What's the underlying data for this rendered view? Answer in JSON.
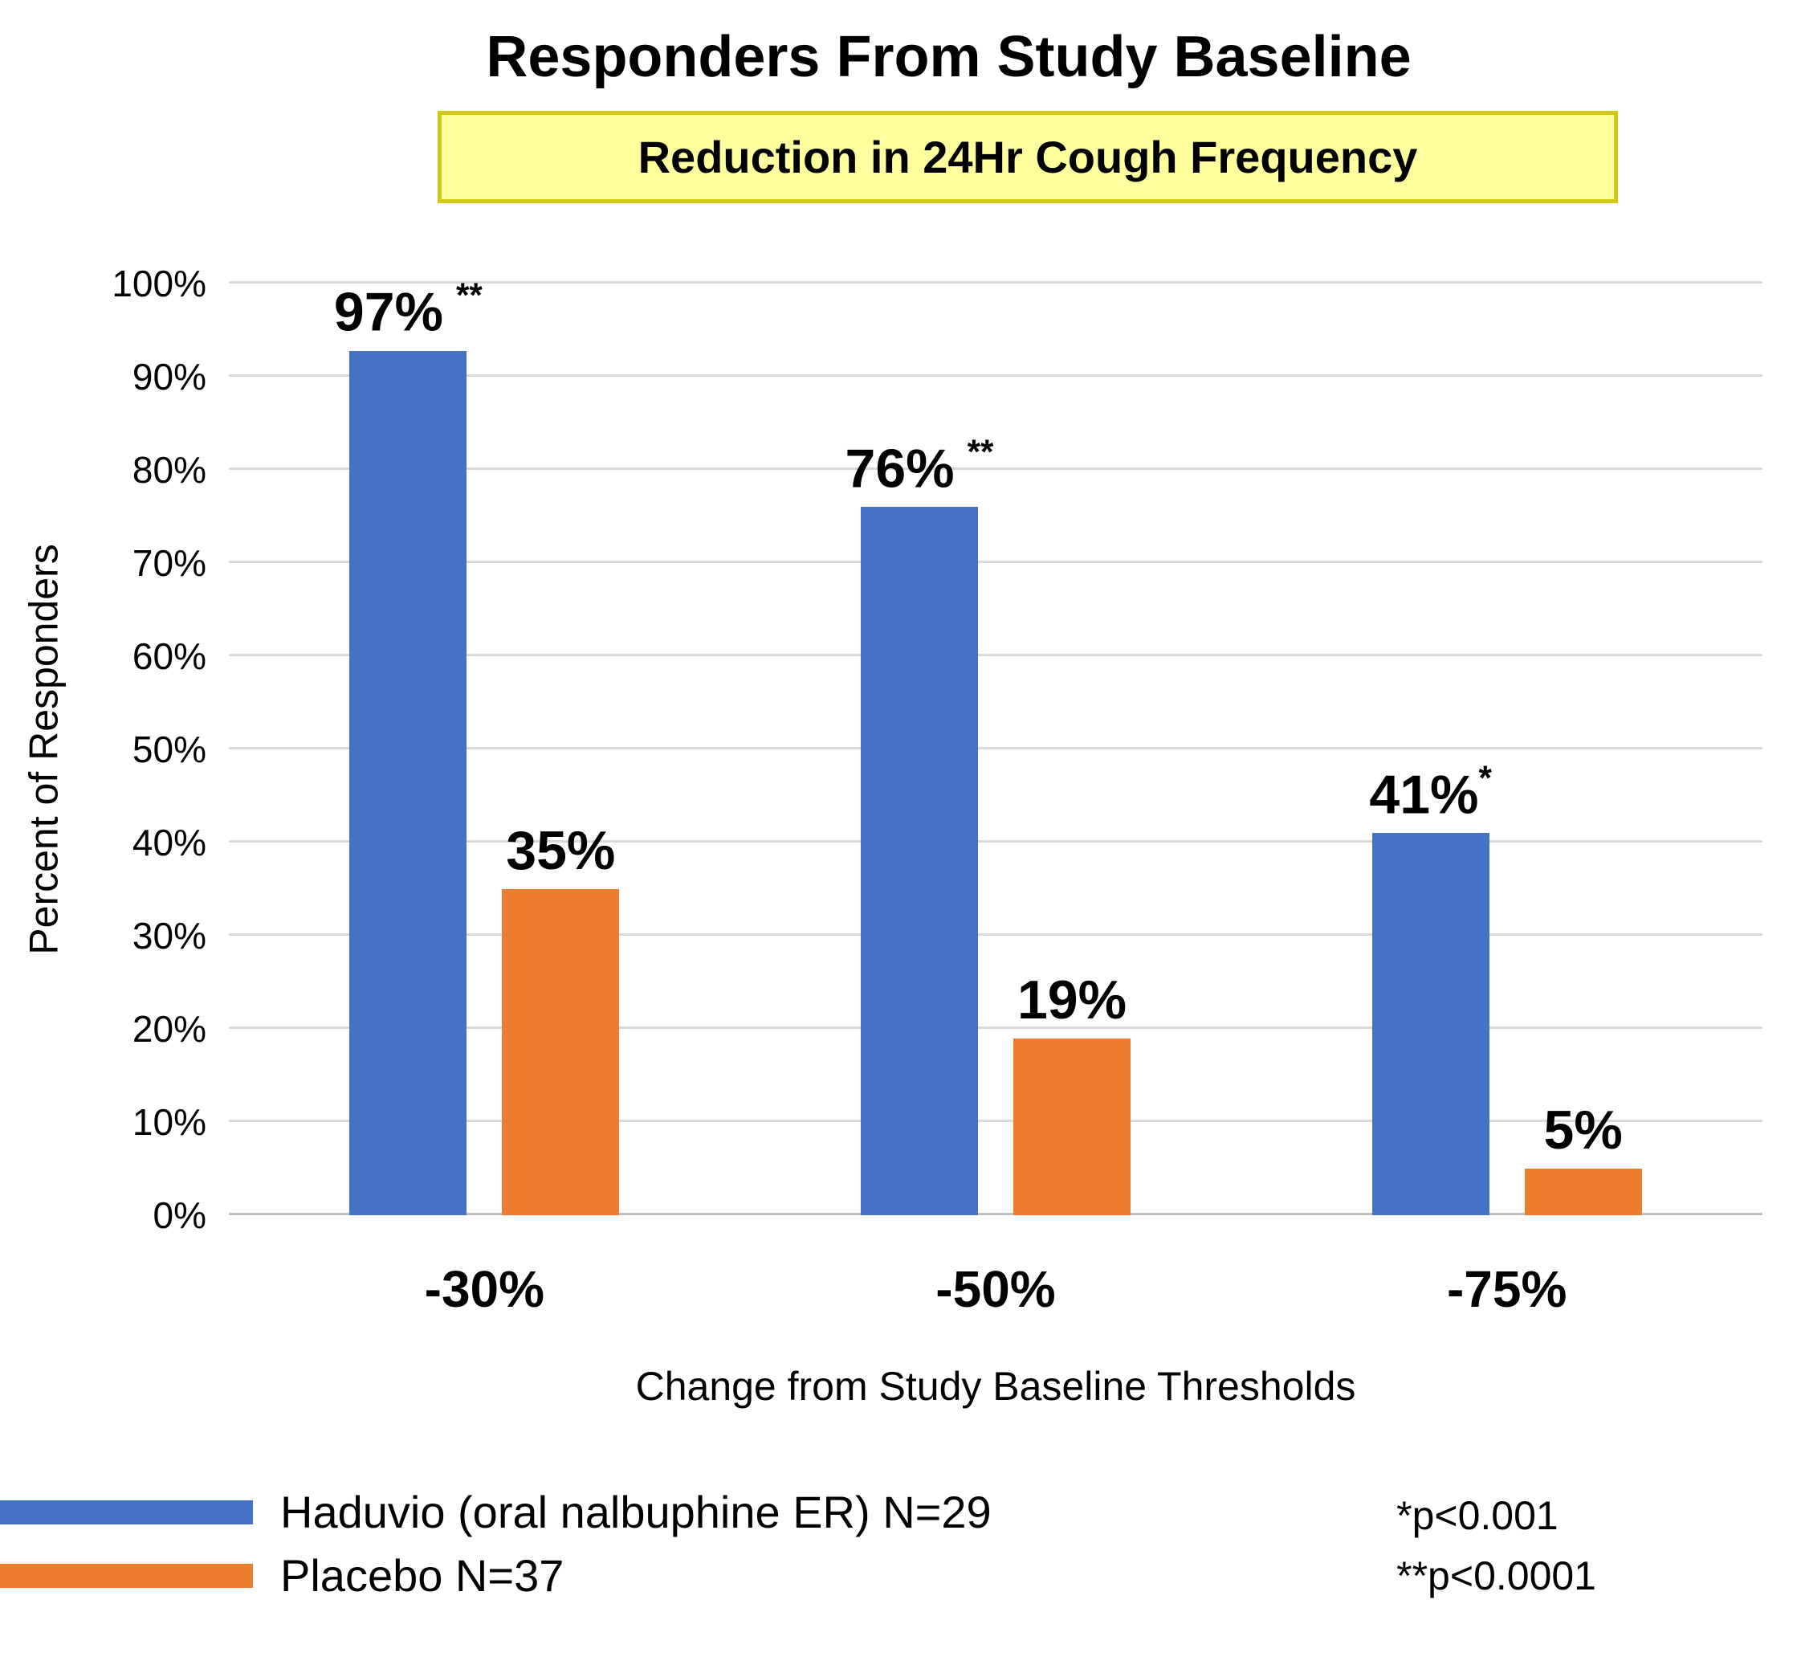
{
  "title": "Responders From Study Baseline",
  "subtitle": "Reduction in 24Hr Cough Frequency",
  "chart_data": {
    "type": "bar",
    "categories": [
      "-30%",
      "-50%",
      "-75%"
    ],
    "series": [
      {
        "name": "Haduvio (oral nalbuphine ER) N=29",
        "color": "#4472C4",
        "values": [
          97,
          76,
          41
        ],
        "labels": [
          "97%",
          "76%",
          "41%"
        ],
        "annotations": [
          "**",
          "**",
          "*"
        ]
      },
      {
        "name": "Placebo N=37",
        "color": "#ED7D31",
        "values": [
          35,
          19,
          5
        ],
        "labels": [
          "35%",
          "19%",
          "5%"
        ],
        "annotations": [
          "",
          "",
          ""
        ]
      }
    ],
    "title": "Responders From Study Baseline",
    "subtitle": "Reduction in 24Hr Cough Frequency",
    "xlabel": "Change from Study Baseline Thresholds",
    "ylabel": "Percent of Responders",
    "ylim": [
      0,
      100
    ],
    "yticks": [
      0,
      10,
      20,
      30,
      40,
      50,
      60,
      70,
      80,
      90,
      100
    ],
    "ytick_labels": [
      "0%",
      "10%",
      "20%",
      "30%",
      "40%",
      "50%",
      "60%",
      "70%",
      "80%",
      "90%",
      "100%"
    ],
    "grid": true,
    "legend_position": "bottom-left"
  },
  "footnotes": [
    "*p<0.001",
    "**p<0.0001"
  ]
}
